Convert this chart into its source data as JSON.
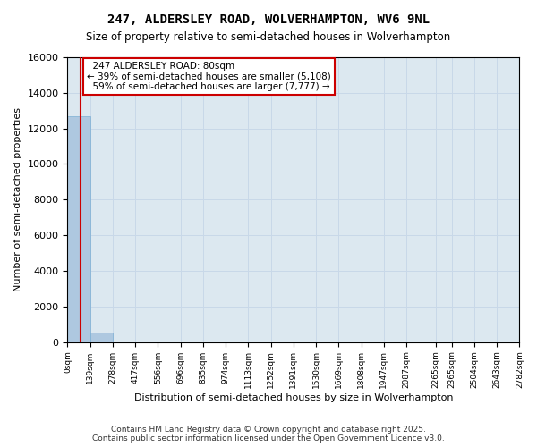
{
  "title": "247, ALDERSLEY ROAD, WOLVERHAMPTON, WV6 9NL",
  "subtitle": "Size of property relative to semi-detached houses in Wolverhampton",
  "xlabel": "Distribution of semi-detached houses by size in Wolverhampton",
  "ylabel": "Number of semi-detached properties",
  "footer_line1": "Contains HM Land Registry data © Crown copyright and database right 2025.",
  "footer_line2": "Contains public sector information licensed under the Open Government Licence v3.0.",
  "property_size": 80,
  "property_label": "247 ALDERSLEY ROAD: 80sqm",
  "pct_smaller": 39,
  "pct_larger": 59,
  "count_smaller": 5108,
  "count_larger": 7777,
  "bin_edges": [
    0,
    139,
    278,
    417,
    556,
    696,
    835,
    974,
    1113,
    1252,
    1391,
    1530,
    1669,
    1808,
    1947,
    2087,
    2265,
    2365,
    2504,
    2643,
    2782
  ],
  "bin_labels": [
    "0sqm",
    "139sqm",
    "278sqm",
    "417sqm",
    "556sqm",
    "696sqm",
    "835sqm",
    "974sqm",
    "1113sqm",
    "1252sqm",
    "1391sqm",
    "1530sqm",
    "1669sqm",
    "1808sqm",
    "1947sqm",
    "2087sqm",
    "2265sqm",
    "2365sqm",
    "2504sqm",
    "2643sqm",
    "2782sqm"
  ],
  "bar_heights": [
    12700,
    530,
    30,
    10,
    5,
    3,
    2,
    1,
    1,
    1,
    0,
    0,
    0,
    0,
    0,
    0,
    0,
    0,
    0,
    0
  ],
  "bar_color": "#aec8e0",
  "bar_edgecolor": "#7bafd4",
  "grid_color": "#c8d8e8",
  "background_color": "#dce8f0",
  "vline_color": "#cc0000",
  "annotation_box_color": "#cc0000",
  "ylim": [
    0,
    16000
  ],
  "yticks": [
    0,
    2000,
    4000,
    6000,
    8000,
    10000,
    12000,
    14000,
    16000
  ]
}
